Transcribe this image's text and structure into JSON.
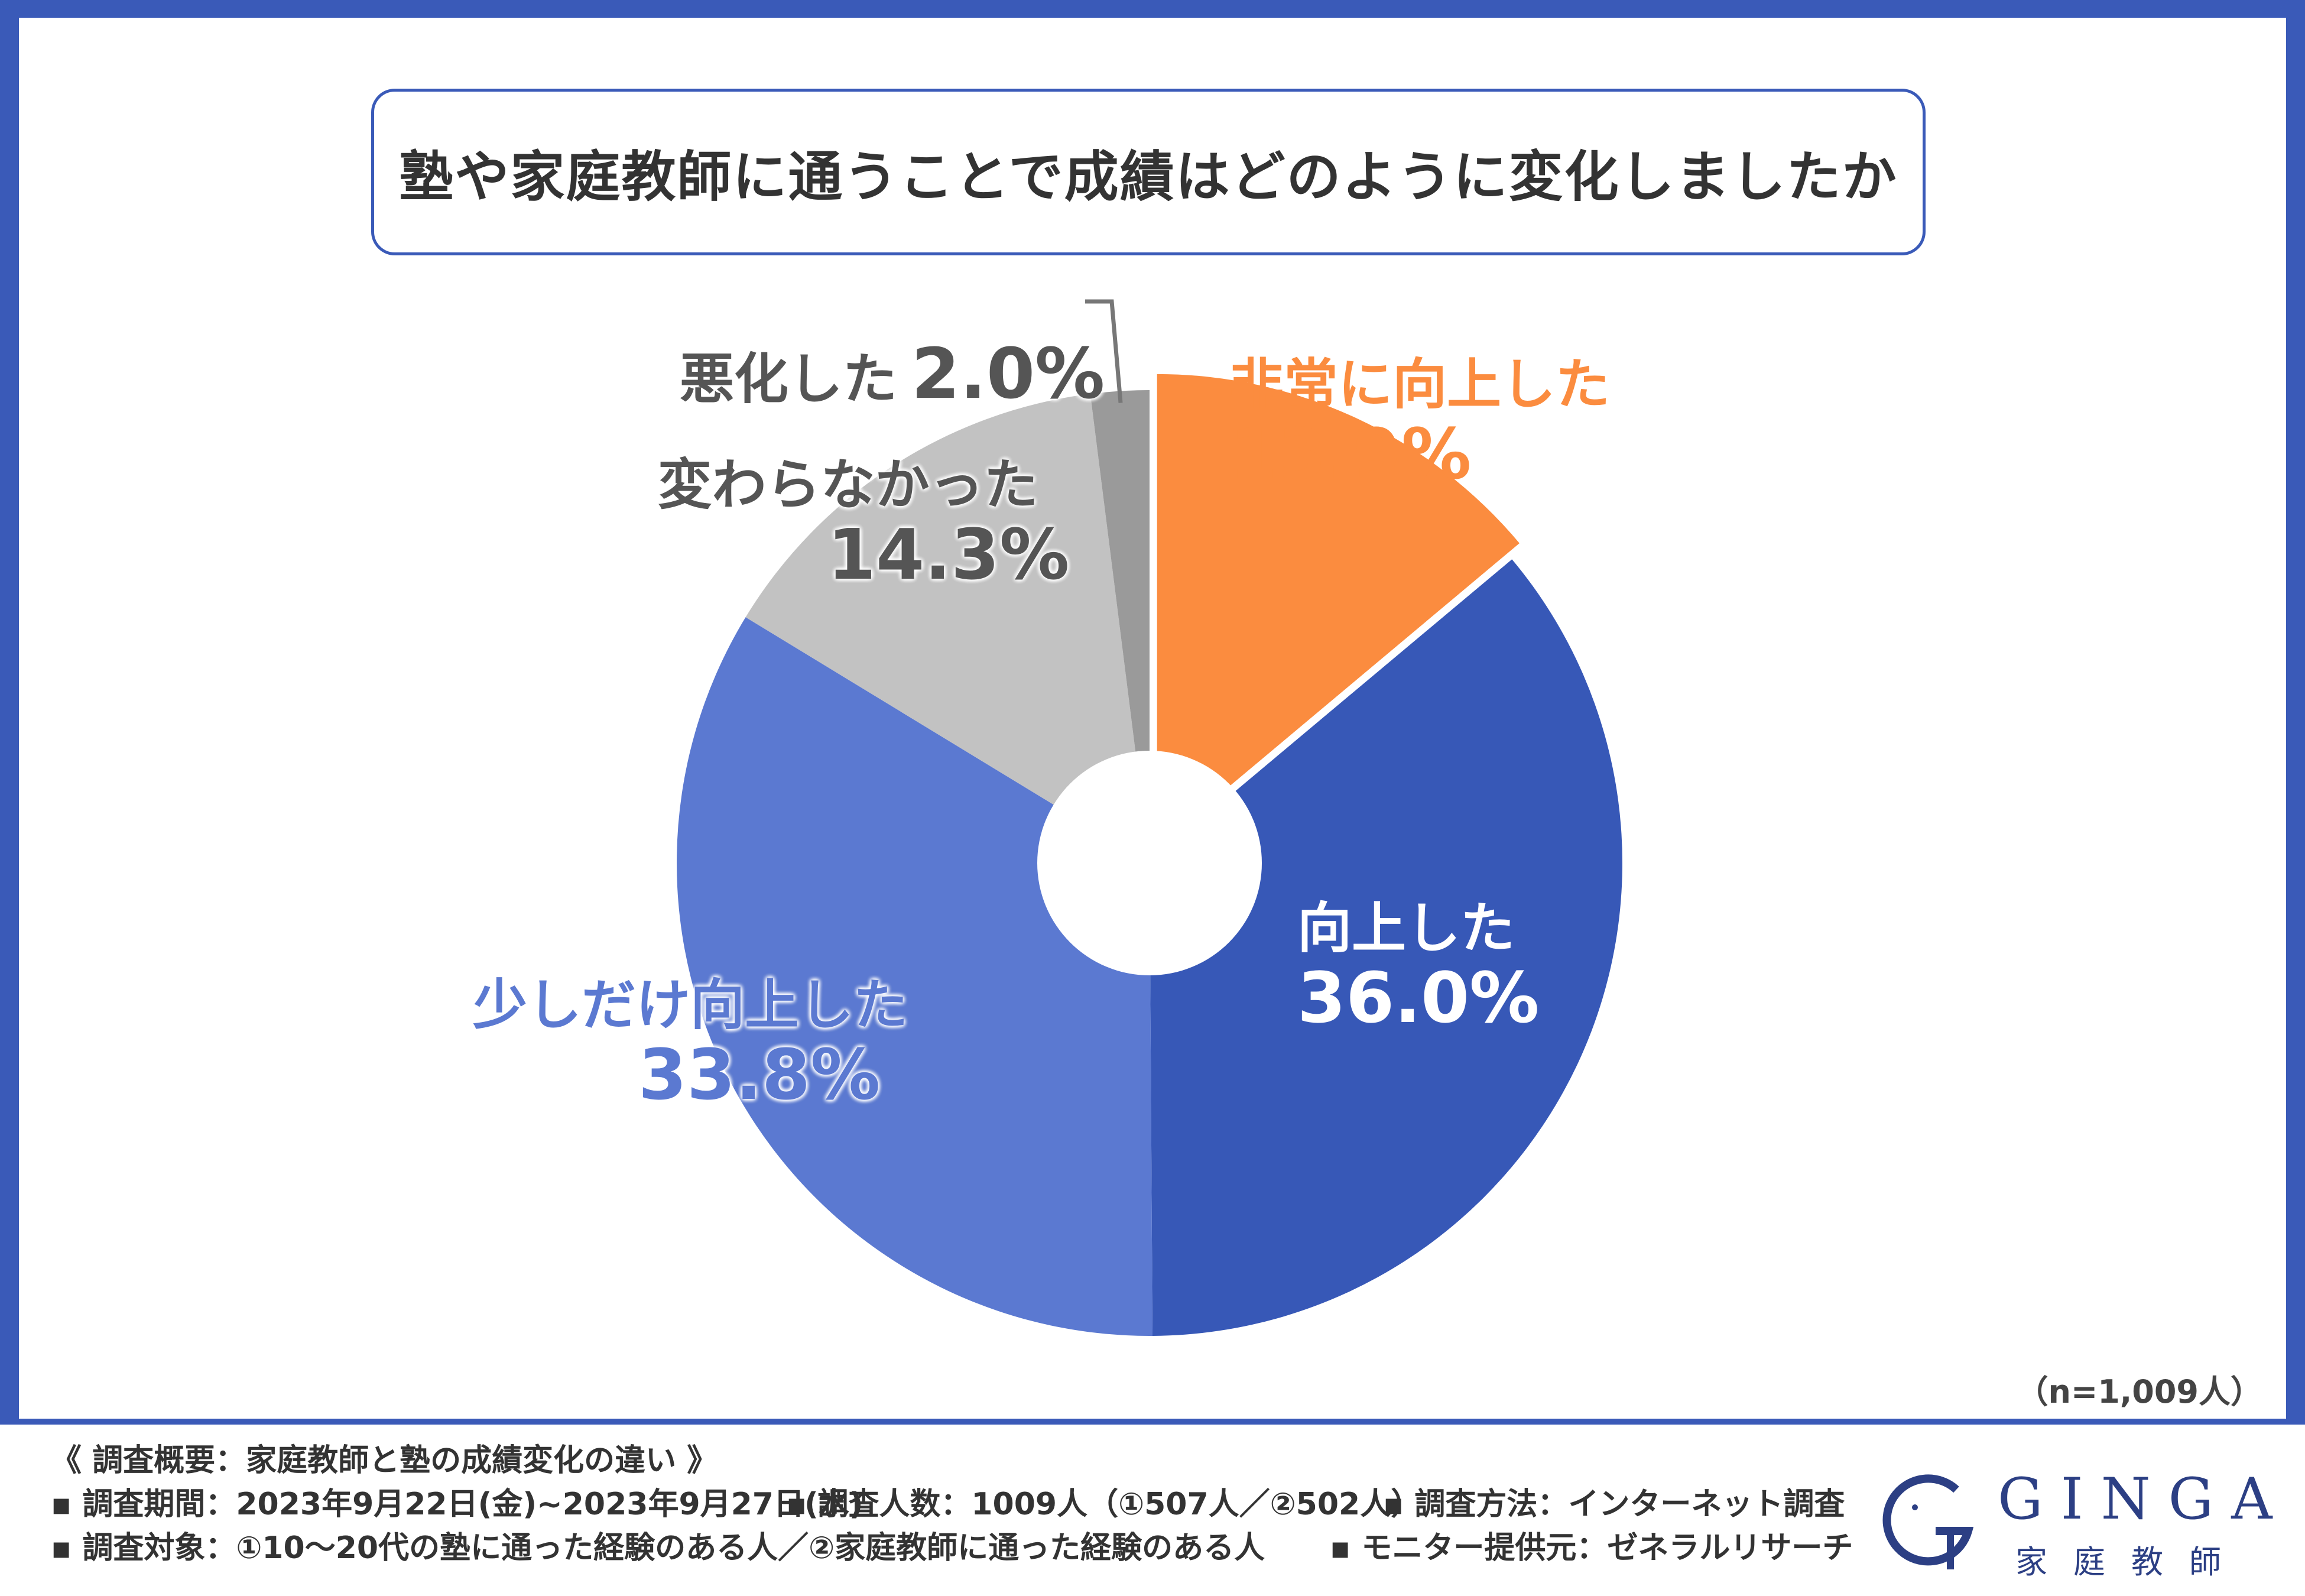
{
  "title": "塾や家庭教師に通うことで成績はどのように変化しましたか",
  "chart_data": {
    "type": "pie",
    "title": "塾や家庭教師に通うことで成績はどのように変化しましたか",
    "slices": [
      {
        "label": "非常に向上した",
        "value": 13.9,
        "display": "13.9%",
        "color": "#fb8c3f"
      },
      {
        "label": "向上した",
        "value": 36.0,
        "display": "36.0%",
        "color": "#3758b7"
      },
      {
        "label": "少しだけ向上した",
        "value": 33.8,
        "display": "33.8%",
        "color": "#5b79d1"
      },
      {
        "label": "変わらなかった",
        "value": 14.3,
        "display": "14.3%",
        "color": "#c2c2c2"
      },
      {
        "label": "悪化した",
        "value": 2.0,
        "display": "2.0%",
        "color": "#9a9a9a"
      }
    ],
    "sample_note": "（n=1,009人）",
    "exploded": "非常に向上した"
  },
  "label_colors": {
    "非常に向上した": "#fb8c3f",
    "向上した": "#ffffff",
    "少しだけ向上した": "#5b79d1",
    "変わらなかった": "#555555",
    "悪化した": "#555555"
  },
  "footer": {
    "line1": "《 調査概要：家庭教師と塾の成績変化の違い 》",
    "line2a": "▪ 調査期間：2023年9月22日(金)~2023年9月27日(水)",
    "line2b": "▪ 調査人数：1009人（①507人／②502人）",
    "line2c": "▪ 調査方法：インターネット調査",
    "line3a": "▪ 調査対象：①10～20代の塾に通った経験のある人／②家庭教師に通った経験のある人",
    "line3b": "▪ モニター提供元：ゼネラルリサーチ"
  },
  "logo": {
    "brand": "GINGA",
    "sub": "家庭教師"
  }
}
